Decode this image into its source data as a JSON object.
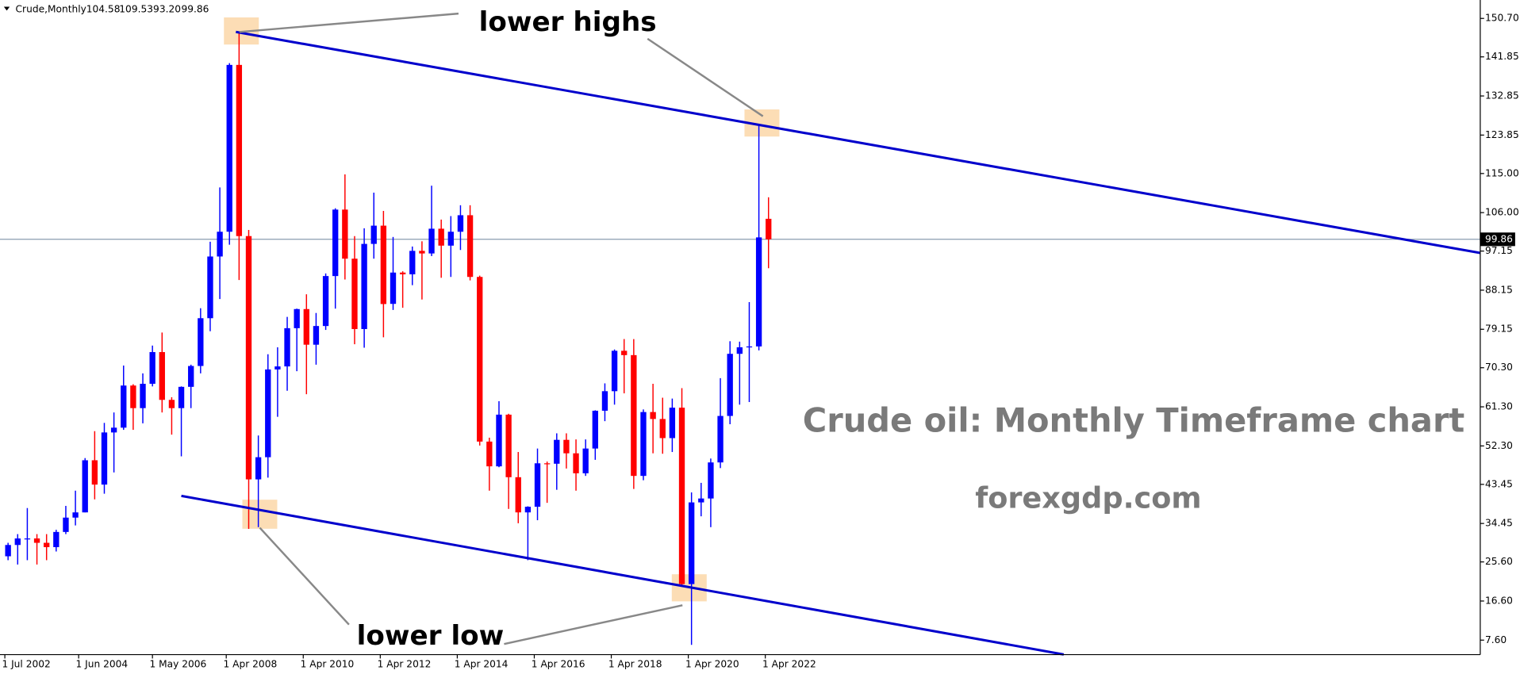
{
  "chart_data": {
    "type": "candlestick",
    "header": {
      "symbol": "Crude,Monthly",
      "ohlc": [
        "104.58",
        "109.53",
        "93.20",
        "99.86"
      ]
    },
    "annotations": {
      "upper": "lower highs",
      "lower": "lower low",
      "title": "Crude oil: Monthly Timeframe chart",
      "site": "forexgdp.com"
    },
    "up_color": "#0000ff",
    "down_color": "#ff0000",
    "x": [
      "1 Jul 2002",
      "1 Oct 2002",
      "1 Jan 2003",
      "1 Apr 2003",
      "1 Jul 2003",
      "1 Oct 2003",
      "1 Jan 2004",
      "1 Apr 2004",
      "1 Jul 2004",
      "1 Oct 2004",
      "1 Jan 2005",
      "1 Apr 2005",
      "1 Jul 2005",
      "1 Oct 2005",
      "1 Jan 2006",
      "1 Apr 2006",
      "1 Jul 2006",
      "1 Oct 2006",
      "1 Jan 2007",
      "1 Apr 2007",
      "1 Jul 2007",
      "1 Oct 2007",
      "1 Jan 2008",
      "1 Apr 2008",
      "1 Jul 2008",
      "1 Oct 2008",
      "1 Jan 2009",
      "1 Apr 2009",
      "1 Jul 2009",
      "1 Oct 2009",
      "1 Jan 2010",
      "1 Apr 2010",
      "1 Jul 2010",
      "1 Oct 2010",
      "1 Jan 2011",
      "1 Apr 2011",
      "1 Jul 2011",
      "1 Oct 2011",
      "1 Jan 2012",
      "1 Apr 2012",
      "1 Jul 2012",
      "1 Oct 2012",
      "1 Jan 2013",
      "1 Apr 2013",
      "1 Jul 2013",
      "1 Oct 2013",
      "1 Jan 2014",
      "1 Apr 2014",
      "1 Jul 2014",
      "1 Oct 2014",
      "1 Jan 2015",
      "1 Apr 2015",
      "1 Jul 2015",
      "1 Oct 2015",
      "1 Jan 2016",
      "1 Apr 2016",
      "1 Jul 2016",
      "1 Oct 2016",
      "1 Jan 2017",
      "1 Apr 2017",
      "1 Jul 2017",
      "1 Oct 2017",
      "1 Jan 2018",
      "1 Apr 2018",
      "1 Jul 2018",
      "1 Oct 2018",
      "1 Jan 2019",
      "1 Apr 2019",
      "1 Jul 2019",
      "1 Oct 2019",
      "1 Jan 2020",
      "1 Apr 2020",
      "1 Jul 2020",
      "1 Oct 2020",
      "1 Jan 2021",
      "1 Apr 2021",
      "1 Jul 2021",
      "1 Oct 2021",
      "1 Jan 2022",
      "1 Apr 2022"
    ],
    "ohlc": [
      [
        26.9,
        30,
        26,
        29.5
      ],
      [
        29.5,
        32,
        25,
        31
      ],
      [
        31,
        38,
        26,
        31
      ],
      [
        31,
        32,
        25,
        30
      ],
      [
        30,
        32,
        26,
        29
      ],
      [
        29,
        33,
        28,
        32.5
      ],
      [
        32.5,
        38.5,
        32,
        35.8
      ],
      [
        35.8,
        42,
        34,
        37
      ],
      [
        37,
        49.5,
        37,
        49
      ],
      [
        49,
        55.7,
        40,
        43.4
      ],
      [
        43.4,
        57.6,
        41.3,
        55.4
      ],
      [
        55.4,
        60,
        46.2,
        56.5
      ],
      [
        56.5,
        70.8,
        56,
        66.2
      ],
      [
        66.2,
        66.5,
        56,
        61
      ],
      [
        61,
        69,
        57.5,
        66.6
      ],
      [
        66.6,
        75.4,
        66,
        73.9
      ],
      [
        73.9,
        78.4,
        60,
        62.9
      ],
      [
        62.9,
        63.5,
        54.9,
        61
      ],
      [
        61,
        66,
        49.9,
        65.9
      ],
      [
        65.9,
        71,
        61,
        70.7
      ],
      [
        70.7,
        84,
        69,
        81.7
      ],
      [
        81.7,
        99.3,
        78.7,
        95.9
      ],
      [
        95.9,
        111.8,
        86.1,
        101.6
      ],
      [
        101.6,
        140.4,
        98.6,
        140
      ],
      [
        140,
        147.3,
        90.5,
        100.6
      ],
      [
        100.6,
        102,
        33.2,
        44.6
      ],
      [
        44.6,
        54.7,
        33.6,
        49.7
      ],
      [
        49.7,
        73.4,
        45,
        69.9
      ],
      [
        69.9,
        75,
        59,
        70.6
      ],
      [
        70.6,
        82,
        65,
        79.4
      ],
      [
        79.4,
        83.9,
        69.5,
        83.8
      ],
      [
        83.8,
        87.2,
        64.2,
        75.6
      ],
      [
        75.6,
        82.9,
        71,
        79.9
      ],
      [
        79.9,
        92,
        79,
        91.4
      ],
      [
        91.4,
        107,
        83.9,
        106.7
      ],
      [
        106.7,
        114.8,
        90.6,
        95.4
      ],
      [
        95.4,
        100.6,
        75.7,
        79.2
      ],
      [
        79.2,
        102.4,
        74.9,
        98.8
      ],
      [
        98.8,
        110.6,
        95.4,
        103
      ],
      [
        103,
        106.4,
        77.3,
        84.96
      ],
      [
        85,
        100.4,
        83.6,
        92.2
      ],
      [
        92.2,
        92.5,
        84.1,
        91.8
      ],
      [
        91.8,
        98.2,
        89.3,
        97.2
      ],
      [
        97.2,
        99.4,
        86,
        96.6
      ],
      [
        96.6,
        112.2,
        96,
        102.3
      ],
      [
        102.3,
        104.4,
        91,
        98.4
      ],
      [
        98.4,
        105.2,
        91.2,
        101.6
      ],
      [
        101.6,
        107.7,
        97.4,
        105.4
      ],
      [
        105.4,
        107.7,
        90.4,
        91.2
      ],
      [
        91.2,
        91.5,
        52.4,
        53.3
      ],
      [
        53.3,
        54.2,
        42,
        47.6
      ],
      [
        47.6,
        62.6,
        47.4,
        59.5
      ],
      [
        59.5,
        59.7,
        37.8,
        45.1
      ],
      [
        45.1,
        50.9,
        34.5,
        37
      ],
      [
        37,
        38.4,
        26,
        38.3
      ],
      [
        38.3,
        51.7,
        35.2,
        48.3
      ],
      [
        48.3,
        48.7,
        39.2,
        48.2
      ],
      [
        48.2,
        55.2,
        42.2,
        53.7
      ],
      [
        53.7,
        55.2,
        47.1,
        50.6
      ],
      [
        50.6,
        53.8,
        42,
        46
      ],
      [
        46,
        53.8,
        45.4,
        51.7
      ],
      [
        51.7,
        60.5,
        49.1,
        60.4
      ],
      [
        60.4,
        66.7,
        58,
        64.9
      ],
      [
        64.9,
        74.5,
        61.8,
        74.2
      ],
      [
        74.2,
        76.9,
        64.4,
        73.2
      ],
      [
        73.2,
        76.9,
        42.4,
        45.4
      ],
      [
        45.4,
        60.7,
        44.4,
        60.1
      ],
      [
        60.1,
        66.6,
        50.6,
        58.5
      ],
      [
        58.5,
        63.4,
        50.5,
        54.1
      ],
      [
        54.1,
        63.2,
        50.9,
        61.1
      ],
      [
        61.1,
        65.6,
        20,
        20.5
      ],
      [
        20.5,
        41.6,
        6.5,
        39.3
      ],
      [
        39.3,
        43.8,
        36.1,
        40.2
      ],
      [
        40.2,
        49.4,
        33.6,
        48.5
      ],
      [
        48.5,
        67.9,
        47.2,
        59.2
      ],
      [
        59.2,
        76.4,
        57.3,
        73.5
      ],
      [
        73.5,
        76.3,
        61.8,
        75
      ],
      [
        75,
        85.4,
        62.4,
        75.2
      ],
      [
        75.2,
        126.4,
        74.3,
        100.3
      ],
      [
        104.58,
        109.53,
        93.2,
        99.86
      ]
    ],
    "ylim": [
      4.26,
      154.94
    ],
    "yticks": [
      {
        "value": 150.7,
        "label": "150.70"
      },
      {
        "value": 141.85,
        "label": "141.85"
      },
      {
        "value": 132.85,
        "label": "132.85"
      },
      {
        "value": 123.85,
        "label": "123.85"
      },
      {
        "value": 115,
        "label": "115.00"
      },
      {
        "value": 106,
        "label": "106.00"
      },
      {
        "value": 97.15,
        "label": "97.15"
      },
      {
        "value": 88.15,
        "label": "88.15"
      },
      {
        "value": 79.15,
        "label": "79.15"
      },
      {
        "value": 70.3,
        "label": "70.30"
      },
      {
        "value": 61.3,
        "label": "61.30"
      },
      {
        "value": 52.3,
        "label": "52.30"
      },
      {
        "value": 43.45,
        "label": "43.45"
      },
      {
        "value": 34.45,
        "label": "34.45"
      },
      {
        "value": 25.6,
        "label": "25.60"
      },
      {
        "value": 16.6,
        "label": "16.60"
      },
      {
        "value": 7.6,
        "label": "7.60"
      }
    ],
    "xticks": [
      "1 Jul 2002",
      "1 Jun 2004",
      "1 May 2006",
      "1 Apr 2008",
      "1 Apr 2010",
      "1 Apr 2012",
      "1 Apr 2014",
      "1 Apr 2016",
      "1 Apr 2018",
      "1 Apr 2020",
      "1 Apr 2022"
    ],
    "last_price": {
      "value": 99.86,
      "label": "99.86"
    },
    "trendlines": [
      {
        "color": "#0000cc",
        "dates": [
          "1 Jul 2008",
          "1 May 2041"
        ],
        "prices": [
          147.6,
          95.9
        ]
      },
      {
        "color": "#0000cc",
        "dates": [
          "1 Feb 2007",
          "1 Jan 2030"
        ],
        "prices": [
          40.8,
          4.3
        ]
      }
    ]
  }
}
